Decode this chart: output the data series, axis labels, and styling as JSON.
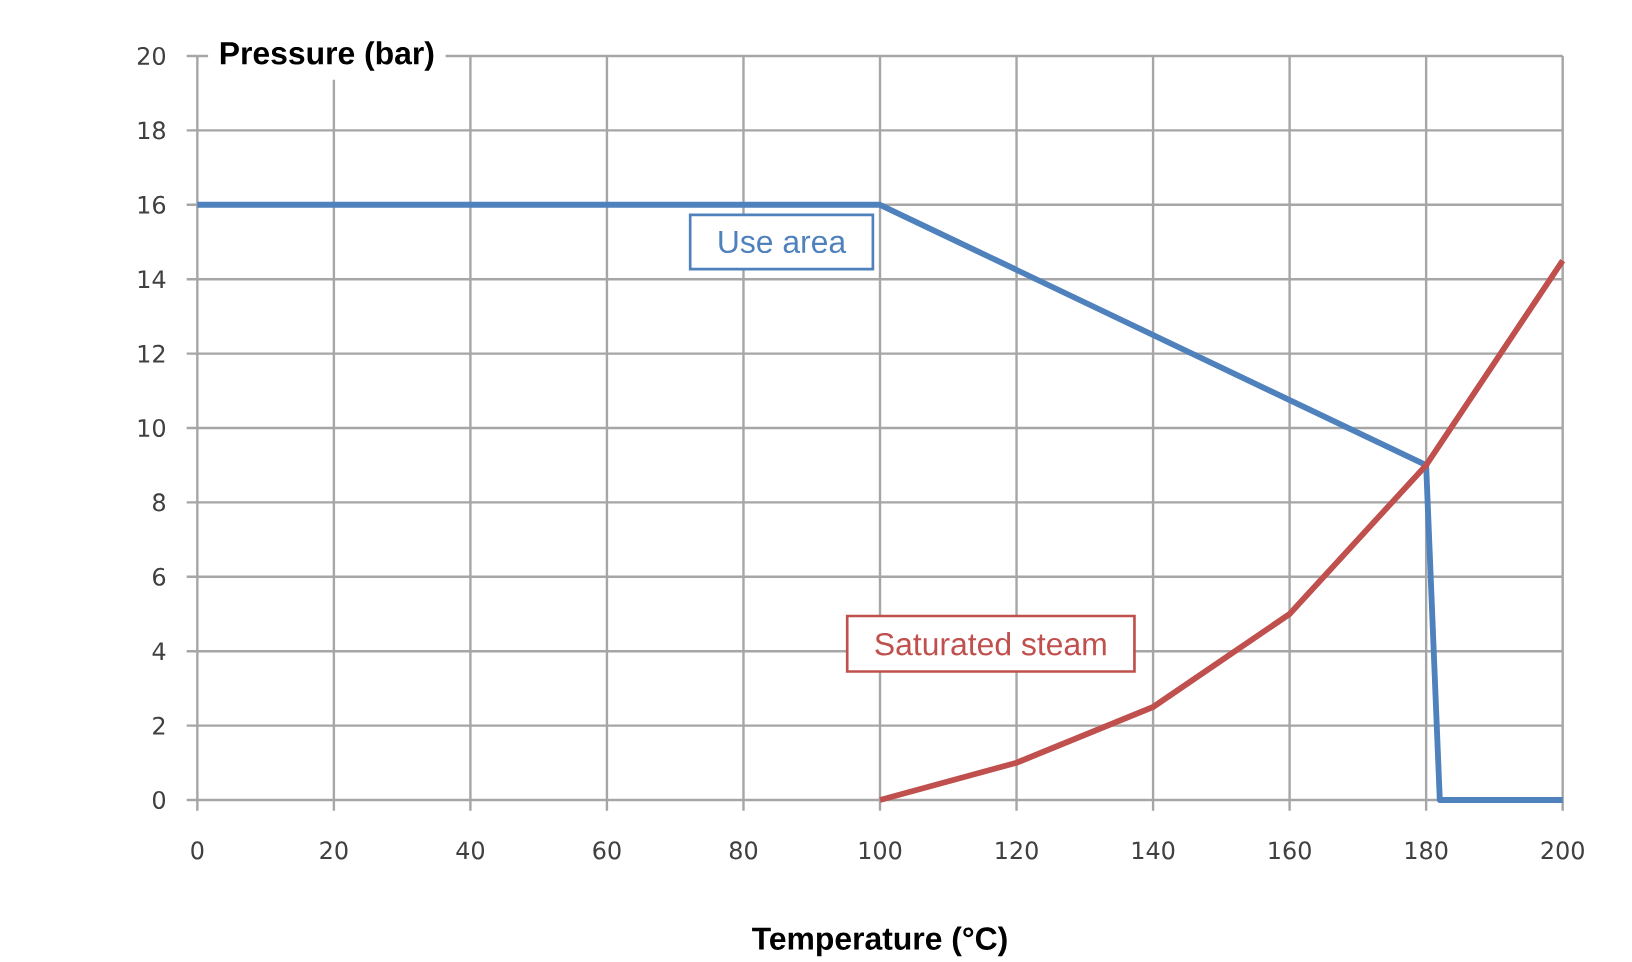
{
  "chart_data": {
    "type": "line",
    "xlabel": "Temperature (°C)",
    "ylabel": "Pressure (bar)",
    "xlim": [
      0,
      200
    ],
    "xticks": [
      0,
      20,
      40,
      60,
      80,
      100,
      120,
      140,
      160,
      180,
      200
    ],
    "ylim": [
      0,
      20
    ],
    "yticks": [
      0,
      2,
      4,
      6,
      8,
      10,
      12,
      14,
      16,
      18,
      20
    ],
    "grid": true,
    "marker": "none",
    "line_style": "solid",
    "series": [
      {
        "name": "Use area",
        "color": "#4f81bd",
        "x": [
          0,
          100,
          180,
          182,
          200
        ],
        "values": [
          16,
          16,
          9,
          0,
          0
        ]
      },
      {
        "name": "Saturated steam",
        "color": "#c0504d",
        "x": [
          100,
          120,
          140,
          160,
          180,
          200
        ],
        "values": [
          0,
          1,
          2.5,
          5,
          9,
          14.5
        ]
      }
    ]
  }
}
